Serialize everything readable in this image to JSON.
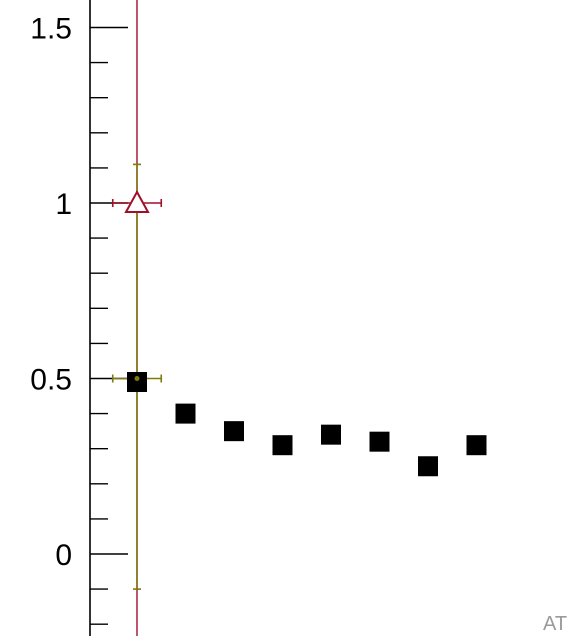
{
  "chart_data": {
    "type": "scatter",
    "title": "",
    "xlabel": "",
    "ylabel": "",
    "ylim": [
      -0.2,
      1.58
    ],
    "y_ticks": [
      {
        "value": 0,
        "label": "0"
      },
      {
        "value": 0.5,
        "label": "0.5"
      },
      {
        "value": 1,
        "label": "1"
      },
      {
        "value": 1.5,
        "label": "1.5"
      }
    ],
    "series": [
      {
        "marker": "square",
        "color": "#000000",
        "points": [
          {
            "x": 1,
            "y": 0.49
          },
          {
            "x": 2,
            "y": 0.4
          },
          {
            "x": 3,
            "y": 0.35
          },
          {
            "x": 4,
            "y": 0.31
          },
          {
            "x": 5,
            "y": 0.34
          },
          {
            "x": 6,
            "y": 0.32
          },
          {
            "x": 7,
            "y": 0.25
          },
          {
            "x": 8,
            "y": 0.31
          }
        ]
      },
      {
        "marker": "triangle-open",
        "color": "#a0102a",
        "points": [
          {
            "x": 1,
            "y": 1.0,
            "xerr": 0.5
          }
        ]
      },
      {
        "marker": "dot",
        "color": "#7d7a10",
        "points": [
          {
            "x": 1,
            "y": 0.5,
            "xerr": 0.5,
            "yerr_low": 0.6,
            "yerr_high": 0.61
          }
        ]
      }
    ],
    "vertical_line": {
      "x": 1,
      "color": "#a0102a"
    }
  },
  "watermark": "AT"
}
